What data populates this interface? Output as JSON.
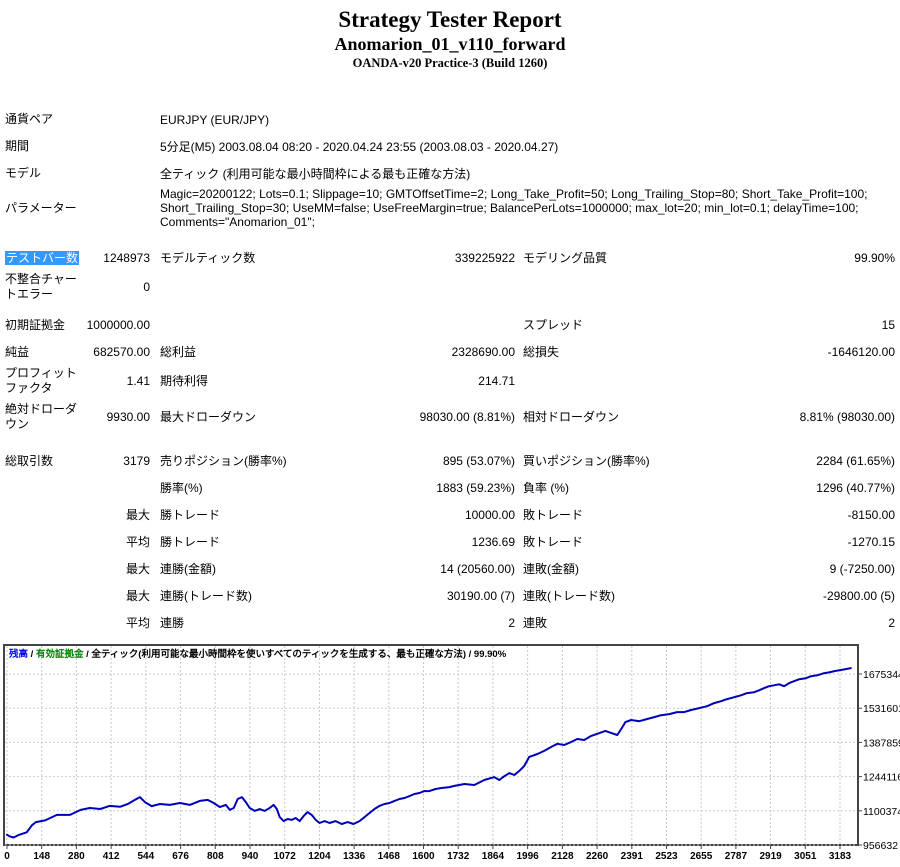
{
  "title": {
    "main": "Strategy Tester Report",
    "sub": "Anomarion_01_v110_forward",
    "server": "OANDA-v20 Practice-3 (Build 1260)"
  },
  "colors": {
    "highlight": "#3399ff",
    "line": "#0000b8",
    "grid": "#c9c9c9",
    "frame": "#444444",
    "legend_balance": "#0000ff",
    "legend_equity": "#008000"
  },
  "report": {
    "rows": [
      {
        "label": "通貨ペア",
        "wide": "EURJPY (EUR/JPY)"
      },
      {
        "label": "期間",
        "wide": "5分足(M5) 2003.08.04 08:20 - 2020.04.24 23:55 (2003.08.03 - 2020.04.27)"
      },
      {
        "label": "モデル",
        "wide": "全ティック (利用可能な最小時間枠による最も正確な方法)"
      },
      {
        "label": "パラメーター",
        "wide": "Magic=20200122; Lots=0.1; Slippage=10; GMTOffsetTime=2; Long_Take_Profit=50; Long_Trailing_Stop=80; Short_Take_Profit=100; Short_Trailing_Stop=30; UseMM=false; UseFreeMargin=true; BalancePerLots=1000000; max_lot=20; min_lot=0.1; delayTime=100; Comments=\"Anomarion_01\";"
      },
      {
        "label": "テストバー数",
        "highlight": true,
        "v1": "1248973",
        "l2": "モデルティック数",
        "v2": "339225922",
        "l3": "モデリング品質",
        "v3": "99.90%"
      },
      {
        "label": "不整合チャートエラー",
        "v1": "0"
      },
      {
        "label": "初期証拠金",
        "v1": "1000000.00",
        "l3": "スプレッド",
        "v3": "15"
      },
      {
        "label": "純益",
        "v1": "682570.00",
        "l2": "総利益",
        "v2": "2328690.00",
        "l3": "総損失",
        "v3": "-1646120.00"
      },
      {
        "label": "プロフィットファクタ",
        "v1": "1.41",
        "l2": "期待利得",
        "v2": "214.71"
      },
      {
        "label": "絶対ドローダウン",
        "v1": "9930.00",
        "l2": "最大ドローダウン",
        "v2": "98030.00 (8.81%)",
        "l3": "相対ドローダウン",
        "v3": "8.81% (98030.00)"
      },
      {
        "label": "総取引数",
        "v1": "3179",
        "l2": "売りポジション(勝率%)",
        "v2": "895 (53.07%)",
        "l3": "買いポジション(勝率%)",
        "v3": "2284 (61.65%)"
      },
      {
        "l2": "勝率(%)",
        "v2": "1883 (59.23%)",
        "l3": "負率 (%)",
        "v3": "1296 (40.77%)"
      },
      {
        "v1": "最大",
        "l2": "勝トレード",
        "v2": "10000.00",
        "l3": "敗トレード",
        "v3": "-8150.00"
      },
      {
        "v1": "平均",
        "l2": "勝トレード",
        "v2": "1236.69",
        "l3": "敗トレード",
        "v3": "-1270.15"
      },
      {
        "v1": "最大",
        "l2": "連勝(金額)",
        "v2": "14 (20560.00)",
        "l3": "連敗(金額)",
        "v3": "9 (-7250.00)"
      },
      {
        "v1": "最大",
        "l2": "連勝(トレード数)",
        "v2": "30190.00 (7)",
        "l3": "連敗(トレード数)",
        "v3": "-29800.00 (5)"
      },
      {
        "v1": "平均",
        "l2": "連勝",
        "v2": "2",
        "l3": "連敗",
        "v3": "2"
      }
    ]
  },
  "chart_data": {
    "type": "line",
    "title": "残高 / 有効証拠金 / 全ティック(利用可能な最小時間枠を使いすべてのティックを生成する、最も正確な方法) / 99.90%",
    "legend": [
      {
        "text": "残高",
        "color": "#0000ff"
      },
      {
        "text": " / ",
        "color": "#000000"
      },
      {
        "text": "有効証拠金",
        "color": "#008000"
      },
      {
        "text": " / 全ティック(利用可能な最小時間枠を使いすべてのティックを生成する、最も正確な方法) / 99.90%",
        "color": "#000000"
      }
    ],
    "xlabel": "",
    "ylabel": "",
    "x_ticks": [
      0,
      148,
      280,
      412,
      544,
      676,
      808,
      940,
      1072,
      1204,
      1336,
      1468,
      1600,
      1732,
      1864,
      1996,
      2128,
      2260,
      2391,
      2523,
      2655,
      2787,
      2919,
      3051,
      3183
    ],
    "y_ticks": [
      1675344,
      1531601,
      1387859,
      1244116,
      1100374,
      956632
    ],
    "ylim": [
      956632,
      1788000
    ],
    "xlim": [
      0,
      3240
    ],
    "grid": true,
    "legend_position": "top-left-inside",
    "series": [
      {
        "name": "残高",
        "points": [
          [
            0,
            1000000
          ],
          [
            10,
            993000
          ],
          [
            25,
            988000
          ],
          [
            45,
            999000
          ],
          [
            75,
            1010000
          ],
          [
            95,
            1040000
          ],
          [
            110,
            1053000
          ],
          [
            145,
            1060000
          ],
          [
            190,
            1083000
          ],
          [
            240,
            1083000
          ],
          [
            280,
            1104000
          ],
          [
            315,
            1112000
          ],
          [
            355,
            1108000
          ],
          [
            390,
            1121000
          ],
          [
            430,
            1117000
          ],
          [
            460,
            1129000
          ],
          [
            487,
            1146000
          ],
          [
            506,
            1158000
          ],
          [
            525,
            1137000
          ],
          [
            551,
            1120000
          ],
          [
            582,
            1129000
          ],
          [
            620,
            1125000
          ],
          [
            658,
            1133000
          ],
          [
            696,
            1125000
          ],
          [
            734,
            1142000
          ],
          [
            764,
            1146000
          ],
          [
            787,
            1133000
          ],
          [
            810,
            1116000
          ],
          [
            833,
            1125000
          ],
          [
            848,
            1104000
          ],
          [
            863,
            1112000
          ],
          [
            878,
            1150000
          ],
          [
            894,
            1158000
          ],
          [
            909,
            1137000
          ],
          [
            924,
            1112000
          ],
          [
            943,
            1100000
          ],
          [
            962,
            1108000
          ],
          [
            981,
            1100000
          ],
          [
            1000,
            1112000
          ],
          [
            1015,
            1125000
          ],
          [
            1027,
            1108000
          ],
          [
            1038,
            1074000
          ],
          [
            1053,
            1057000
          ],
          [
            1068,
            1066000
          ],
          [
            1084,
            1062000
          ],
          [
            1099,
            1070000
          ],
          [
            1114,
            1057000
          ],
          [
            1129,
            1078000
          ],
          [
            1144,
            1095000
          ],
          [
            1160,
            1083000
          ],
          [
            1175,
            1062000
          ],
          [
            1190,
            1049000
          ],
          [
            1209,
            1057000
          ],
          [
            1228,
            1049000
          ],
          [
            1251,
            1057000
          ],
          [
            1274,
            1045000
          ],
          [
            1297,
            1053000
          ],
          [
            1319,
            1045000
          ],
          [
            1342,
            1057000
          ],
          [
            1361,
            1074000
          ],
          [
            1380,
            1091000
          ],
          [
            1399,
            1108000
          ],
          [
            1418,
            1121000
          ],
          [
            1437,
            1129000
          ],
          [
            1456,
            1133000
          ],
          [
            1475,
            1142000
          ],
          [
            1494,
            1150000
          ],
          [
            1513,
            1154000
          ],
          [
            1532,
            1162000
          ],
          [
            1551,
            1171000
          ],
          [
            1570,
            1175000
          ],
          [
            1589,
            1183000
          ],
          [
            1608,
            1183000
          ],
          [
            1631,
            1192000
          ],
          [
            1654,
            1196000
          ],
          [
            1684,
            1200000
          ],
          [
            1703,
            1205000
          ],
          [
            1741,
            1213000
          ],
          [
            1779,
            1209000
          ],
          [
            1817,
            1230000
          ],
          [
            1855,
            1242000
          ],
          [
            1874,
            1230000
          ],
          [
            1893,
            1246000
          ],
          [
            1912,
            1259000
          ],
          [
            1931,
            1251000
          ],
          [
            1950,
            1268000
          ],
          [
            1969,
            1289000
          ],
          [
            1988,
            1327000
          ],
          [
            2019,
            1339000
          ],
          [
            2045,
            1352000
          ],
          [
            2072,
            1369000
          ],
          [
            2095,
            1382000
          ],
          [
            2121,
            1377000
          ],
          [
            2148,
            1390000
          ],
          [
            2171,
            1402000
          ],
          [
            2197,
            1398000
          ],
          [
            2224,
            1415000
          ],
          [
            2255,
            1427000
          ],
          [
            2278,
            1436000
          ],
          [
            2301,
            1427000
          ],
          [
            2323,
            1419000
          ],
          [
            2338,
            1444000
          ],
          [
            2354,
            1473000
          ],
          [
            2376,
            1482000
          ],
          [
            2407,
            1477000
          ],
          [
            2437,
            1486000
          ],
          [
            2464,
            1494000
          ],
          [
            2490,
            1502000
          ],
          [
            2521,
            1507000
          ],
          [
            2551,
            1515000
          ],
          [
            2578,
            1515000
          ],
          [
            2604,
            1524000
          ],
          [
            2635,
            1532000
          ],
          [
            2665,
            1540000
          ],
          [
            2692,
            1553000
          ],
          [
            2718,
            1561000
          ],
          [
            2741,
            1570000
          ],
          [
            2768,
            1578000
          ],
          [
            2794,
            1586000
          ],
          [
            2817,
            1595000
          ],
          [
            2844,
            1599000
          ],
          [
            2863,
            1607000
          ],
          [
            2882,
            1616000
          ],
          [
            2901,
            1624000
          ],
          [
            2920,
            1628000
          ],
          [
            2939,
            1632000
          ],
          [
            2958,
            1624000
          ],
          [
            2977,
            1637000
          ],
          [
            2996,
            1645000
          ],
          [
            3015,
            1653000
          ],
          [
            3038,
            1657000
          ],
          [
            3061,
            1666000
          ],
          [
            3084,
            1670000
          ],
          [
            3107,
            1678000
          ],
          [
            3129,
            1682000
          ],
          [
            3152,
            1688000
          ],
          [
            3174,
            1692000
          ],
          [
            3193,
            1696000
          ],
          [
            3212,
            1700000
          ]
        ]
      }
    ]
  }
}
